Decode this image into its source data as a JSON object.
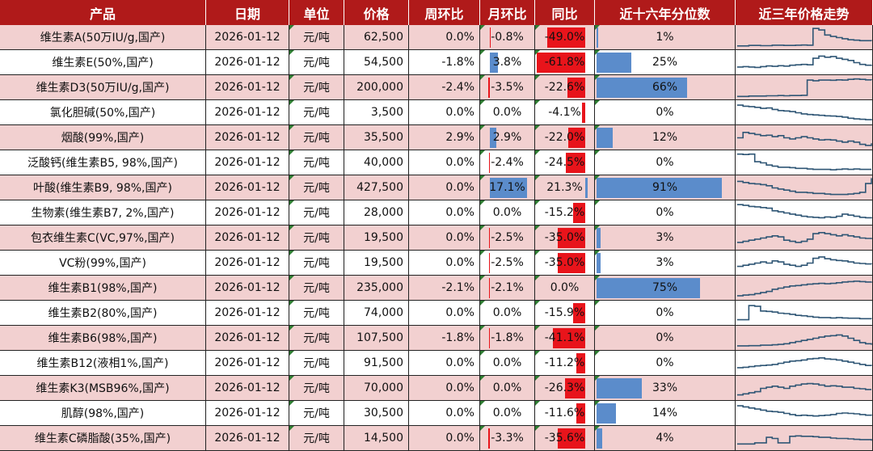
{
  "colors": {
    "header": "#b01a1a",
    "row_pink": "#f2d0d0",
    "row_white": "#ffffff",
    "bar_red": "#e8141b",
    "bar_blue": "#5b8ccb",
    "spark": "#2f5675"
  },
  "headers": [
    "产品",
    "日期",
    "单位",
    "价格",
    "周环比",
    "月环比",
    "同比",
    "近十六年分位数",
    "近三年价格走势"
  ],
  "rows": [
    {
      "product": "维生素A(50万IU/g,国产)",
      "date": "2026-01-12",
      "unit": "元/吨",
      "price": "62,500",
      "wow": "0.0%",
      "mom": "-0.8%",
      "yoy": "-49.0%",
      "pct": "1%",
      "w": 0,
      "m": -0.8,
      "y": -49.0,
      "p": 1,
      "trend": [
        0.12,
        0.12,
        0.14,
        0.14,
        0.13,
        0.13,
        0.15,
        0.15,
        0.14,
        0.14,
        0.15,
        0.16,
        0.15,
        0.92,
        0.85,
        0.62,
        0.55,
        0.5,
        0.45,
        0.4,
        0.38,
        0.36,
        0.36,
        0.35
      ]
    },
    {
      "product": "维生素E(50%,国产)",
      "date": "2026-01-12",
      "unit": "元/吨",
      "price": "54,500",
      "wow": "-1.8%",
      "mom": "3.8%",
      "yoy": "-61.8%",
      "pct": "25%",
      "w": -1.8,
      "m": 3.8,
      "y": -61.8,
      "p": 25,
      "trend": [
        0.3,
        0.32,
        0.3,
        0.28,
        0.32,
        0.35,
        0.33,
        0.36,
        0.34,
        0.38,
        0.4,
        0.42,
        0.4,
        0.7,
        0.8,
        0.75,
        0.78,
        0.7,
        0.65,
        0.6,
        0.5,
        0.42,
        0.38,
        0.4
      ]
    },
    {
      "product": "维生素D3(50万IU/g,国产)",
      "date": "2026-01-12",
      "unit": "元/吨",
      "price": "200,000",
      "wow": "-2.4%",
      "mom": "-3.5%",
      "yoy": "-22.6%",
      "pct": "66%",
      "w": -2.4,
      "m": -3.5,
      "y": -22.6,
      "p": 66,
      "trend": [
        0.1,
        0.1,
        0.12,
        0.12,
        0.12,
        0.13,
        0.13,
        0.14,
        0.13,
        0.14,
        0.14,
        0.15,
        0.85,
        0.82,
        0.85,
        0.85,
        0.84,
        0.86,
        0.85,
        0.88,
        0.9,
        0.88,
        0.86,
        0.85
      ]
    },
    {
      "product": "氯化胆碱(50%,国产)",
      "date": "2026-01-12",
      "unit": "元/吨",
      "price": "3,500",
      "wow": "0.0%",
      "mom": "0.0%",
      "yoy": "-4.1%",
      "pct": "0%",
      "w": 0,
      "m": 0,
      "y": -4.1,
      "p": 0,
      "trend": [
        0.85,
        0.8,
        0.78,
        0.75,
        0.7,
        0.72,
        0.65,
        0.6,
        0.58,
        0.55,
        0.5,
        0.45,
        0.42,
        0.4,
        0.38,
        0.36,
        0.35,
        0.33,
        0.3,
        0.25,
        0.22,
        0.2,
        0.18,
        0.15
      ]
    },
    {
      "product": "烟酸(99%,国产)",
      "date": "2026-01-12",
      "unit": "元/吨",
      "price": "35,500",
      "wow": "2.9%",
      "mom": "2.9%",
      "yoy": "-22.0%",
      "pct": "12%",
      "w": 2.9,
      "m": 2.9,
      "y": -22.0,
      "p": 12,
      "trend": [
        0.5,
        0.75,
        0.7,
        0.65,
        0.6,
        0.62,
        0.55,
        0.6,
        0.5,
        0.45,
        0.5,
        0.55,
        0.5,
        0.45,
        0.4,
        0.42,
        0.4,
        0.35,
        0.3,
        0.35,
        0.3,
        0.2,
        0.15,
        0.25
      ]
    },
    {
      "product": "泛酸钙(维生素B5, 98%,国产)",
      "date": "2026-01-12",
      "unit": "元/吨",
      "price": "40,000",
      "wow": "0.0%",
      "mom": "-2.4%",
      "yoy": "-24.5%",
      "pct": "0%",
      "w": 0,
      "m": -2.4,
      "y": -24.5,
      "p": 0,
      "trend": [
        0.9,
        0.88,
        0.9,
        0.55,
        0.5,
        0.4,
        0.35,
        0.3,
        0.3,
        0.28,
        0.25,
        0.25,
        0.22,
        0.2,
        0.2,
        0.2,
        0.18,
        0.2,
        0.22,
        0.2,
        0.22,
        0.2,
        0.2,
        0.2
      ]
    },
    {
      "product": "叶酸(维生素B9, 98%,国产)",
      "date": "2026-01-12",
      "unit": "元/吨",
      "price": "427,500",
      "wow": "0.0%",
      "mom": "17.1%",
      "yoy": "21.3%",
      "pct": "91%",
      "w": 0,
      "m": 17.1,
      "y": 21.3,
      "p": 91,
      "trend": [
        0.8,
        0.75,
        0.7,
        0.68,
        0.65,
        0.6,
        0.5,
        0.45,
        0.4,
        0.35,
        0.3,
        0.3,
        0.28,
        0.25,
        0.25,
        0.22,
        0.2,
        0.2,
        0.2,
        0.22,
        0.25,
        0.3,
        0.7,
        0.95
      ]
    },
    {
      "product": "生物素(维生素B7, 2%,国产)",
      "date": "2026-01-12",
      "unit": "元/吨",
      "price": "28,000",
      "wow": "0.0%",
      "mom": "0.0%",
      "yoy": "-15.2%",
      "pct": "0%",
      "w": 0,
      "m": 0,
      "y": -15.2,
      "p": 0,
      "trend": [
        0.88,
        0.85,
        0.8,
        0.78,
        0.75,
        0.72,
        0.6,
        0.55,
        0.5,
        0.45,
        0.4,
        0.35,
        0.32,
        0.3,
        0.28,
        0.32,
        0.3,
        0.35,
        0.45,
        0.4,
        0.35,
        0.3,
        0.28,
        0.25
      ]
    },
    {
      "product": "包衣维生素C(VC,97%,国产)",
      "date": "2026-01-12",
      "unit": "元/吨",
      "price": "19,500",
      "wow": "0.0%",
      "mom": "-2.5%",
      "yoy": "-35.0%",
      "pct": "3%",
      "w": 0,
      "m": -2.5,
      "y": -35.0,
      "p": 3,
      "trend": [
        0.3,
        0.35,
        0.4,
        0.45,
        0.5,
        0.55,
        0.6,
        0.55,
        0.4,
        0.35,
        0.3,
        0.35,
        0.45,
        0.7,
        0.75,
        0.7,
        0.65,
        0.6,
        0.65,
        0.6,
        0.55,
        0.5,
        0.48,
        0.45
      ]
    },
    {
      "product": "VC粉(99%,国产)",
      "date": "2026-01-12",
      "unit": "元/吨",
      "price": "19,500",
      "wow": "0.0%",
      "mom": "-2.5%",
      "yoy": "-35.0%",
      "pct": "3%",
      "w": 0,
      "m": -2.5,
      "y": -35.0,
      "p": 3,
      "trend": [
        0.35,
        0.4,
        0.45,
        0.5,
        0.55,
        0.5,
        0.6,
        0.55,
        0.45,
        0.4,
        0.35,
        0.4,
        0.5,
        0.72,
        0.78,
        0.7,
        0.65,
        0.62,
        0.6,
        0.55,
        0.5,
        0.48,
        0.46,
        0.45
      ]
    },
    {
      "product": "维生素B1(98%,国产)",
      "date": "2026-01-12",
      "unit": "元/吨",
      "price": "235,000",
      "wow": "-2.1%",
      "mom": "-2.1%",
      "yoy": "0.0%",
      "pct": "75%",
      "w": -2.1,
      "m": -2.1,
      "y": 0,
      "p": 75,
      "trend": [
        0.15,
        0.18,
        0.2,
        0.25,
        0.3,
        0.35,
        0.45,
        0.5,
        0.55,
        0.6,
        0.62,
        0.65,
        0.68,
        0.7,
        0.72,
        0.7,
        0.72,
        0.75,
        0.78,
        0.8,
        0.82,
        0.8,
        0.78,
        0.8
      ]
    },
    {
      "product": "维生素B2(80%,国产)",
      "date": "2026-01-12",
      "unit": "元/吨",
      "price": "74,000",
      "wow": "0.0%",
      "mom": "0.0%",
      "yoy": "-15.9%",
      "pct": "0%",
      "w": 0,
      "m": 0,
      "y": -15.9,
      "p": 0,
      "trend": [
        0.2,
        0.2,
        0.85,
        0.82,
        0.6,
        0.58,
        0.55,
        0.5,
        0.48,
        0.45,
        0.4,
        0.38,
        0.35,
        0.32,
        0.3,
        0.3,
        0.28,
        0.3,
        0.28,
        0.27,
        0.27,
        0.25,
        0.25,
        0.24
      ]
    },
    {
      "product": "维生素B6(98%,国产)",
      "date": "2026-01-12",
      "unit": "元/吨",
      "price": "107,500",
      "wow": "-1.8%",
      "mom": "-1.8%",
      "yoy": "-41.1%",
      "pct": "0%",
      "w": -1.8,
      "m": -1.8,
      "y": -41.1,
      "p": 0,
      "trend": [
        0.15,
        0.15,
        0.16,
        0.16,
        0.18,
        0.18,
        0.2,
        0.22,
        0.25,
        0.3,
        0.35,
        0.4,
        0.45,
        0.5,
        0.55,
        0.6,
        0.62,
        0.65,
        0.6,
        0.5,
        0.4,
        0.3,
        0.25,
        0.2
      ]
    },
    {
      "product": "维生素B12(液相1%,国产)",
      "date": "2026-01-12",
      "unit": "元/吨",
      "price": "91,500",
      "wow": "0.0%",
      "mom": "0.0%",
      "yoy": "-11.2%",
      "pct": "0%",
      "w": 0,
      "m": 0,
      "y": -11.2,
      "p": 0,
      "trend": [
        0.3,
        0.32,
        0.35,
        0.38,
        0.4,
        0.42,
        0.45,
        0.5,
        0.55,
        0.6,
        0.62,
        0.65,
        0.7,
        0.72,
        0.75,
        0.7,
        0.68,
        0.65,
        0.6,
        0.55,
        0.5,
        0.45,
        0.4,
        0.38
      ]
    },
    {
      "product": "维生素K3(MSB96%,国产)",
      "date": "2026-01-12",
      "unit": "元/吨",
      "price": "70,000",
      "wow": "0.0%",
      "mom": "0.0%",
      "yoy": "-26.3%",
      "pct": "33%",
      "w": 0,
      "m": 0,
      "y": -26.3,
      "p": 33,
      "trend": [
        0.2,
        0.25,
        0.3,
        0.35,
        0.5,
        0.55,
        0.6,
        0.55,
        0.5,
        0.6,
        0.65,
        0.7,
        0.72,
        0.7,
        0.65,
        0.6,
        0.62,
        0.6,
        0.55,
        0.55,
        0.5,
        0.48,
        0.45,
        0.45
      ]
    },
    {
      "product": "肌醇(98%,国产)",
      "date": "2026-01-12",
      "unit": "元/吨",
      "price": "30,500",
      "wow": "0.0%",
      "mom": "0.0%",
      "yoy": "-11.6%",
      "pct": "14%",
      "w": 0,
      "m": 0,
      "y": -11.6,
      "p": 14,
      "trend": [
        0.85,
        0.8,
        0.75,
        0.7,
        0.65,
        0.6,
        0.58,
        0.55,
        0.5,
        0.45,
        0.4,
        0.42,
        0.4,
        0.38,
        0.4,
        0.42,
        0.45,
        0.5,
        0.52,
        0.5,
        0.48,
        0.45,
        0.42,
        0.4
      ]
    },
    {
      "product": "维生素C磷脂酸(35%,国产)",
      "date": "2026-01-12",
      "unit": "元/吨",
      "price": "14,500",
      "wow": "0.0%",
      "mom": "-3.3%",
      "yoy": "-35.6%",
      "pct": "4%",
      "w": 0,
      "m": -3.3,
      "y": -35.6,
      "p": 4,
      "trend": [
        0.25,
        0.25,
        0.25,
        0.3,
        0.3,
        0.55,
        0.5,
        0.3,
        0.3,
        0.6,
        0.62,
        0.6,
        0.6,
        0.58,
        0.55,
        0.55,
        0.52,
        0.5,
        0.5,
        0.48,
        0.46,
        0.45,
        0.45,
        0.4
      ]
    }
  ]
}
